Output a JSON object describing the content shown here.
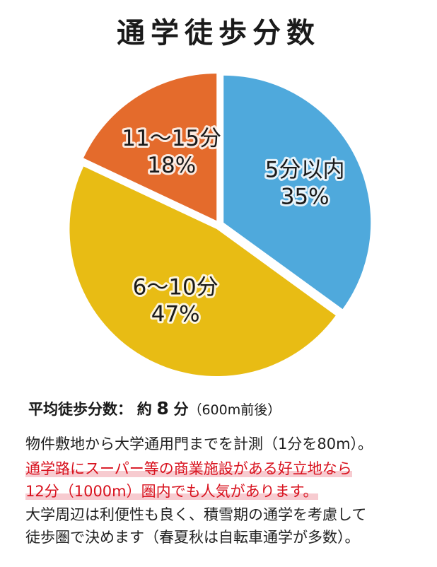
{
  "title": "通学徒歩分数",
  "chart_data": {
    "type": "pie",
    "slices": [
      {
        "label": "5分以内",
        "value": 35,
        "pct": "35%",
        "color": "#4fa9dc"
      },
      {
        "label": "6〜10分",
        "value": 47,
        "pct": "47%",
        "color": "#e8bc14"
      },
      {
        "label": "11〜15分",
        "value": 18,
        "pct": "18%",
        "color": "#e46b2c"
      }
    ]
  },
  "summary": {
    "label": "平均徒歩分数：",
    "about": "約",
    "value": "8",
    "unit": "分",
    "note": "（600m前後）"
  },
  "description": {
    "line1": "物件敷地から大学通用門までを計測（1分を80m）。",
    "highlight1": "通学路にスーパー等の商業施設がある好立地なら",
    "highlight2": "12分（1000m）圏内でも人気があります。",
    "line4": "大学周辺は利便性も良く、積雪期の通学を考慮して",
    "line5": "徒歩圏で決めます（春夏秋は自転車通学が多数）。"
  }
}
